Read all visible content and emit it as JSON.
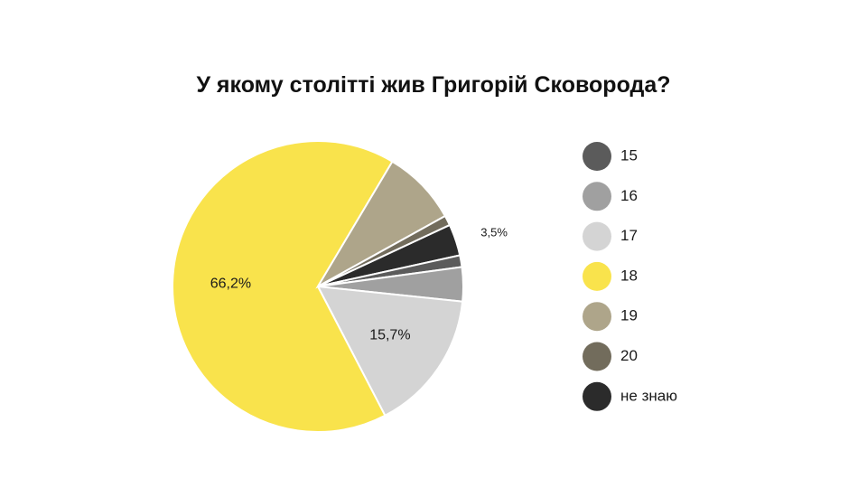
{
  "chart_data": {
    "type": "pie",
    "title": "У якому столітті жив Григорій Сковорода?",
    "legend_position": "right",
    "categories": [
      "15",
      "16",
      "17",
      "18",
      "19",
      "20",
      "не знаю"
    ],
    "colors": [
      "#5b5b5b",
      "#a0a0a0",
      "#d4d4d4",
      "#f9e34c",
      "#aea58a",
      "#726c5c",
      "#2b2b2b"
    ],
    "values": [
      1.3,
      3.8,
      15.7,
      66.2,
      8.4,
      1.1,
      3.5
    ],
    "slice_order": [
      "не знаю",
      "15",
      "16",
      "17",
      "18",
      "19",
      "20"
    ],
    "data_labels": [
      {
        "category": "18",
        "text": "66,2%"
      },
      {
        "category": "17",
        "text": "15,7%"
      },
      {
        "category": "не знаю",
        "text": "3,5%"
      }
    ]
  }
}
